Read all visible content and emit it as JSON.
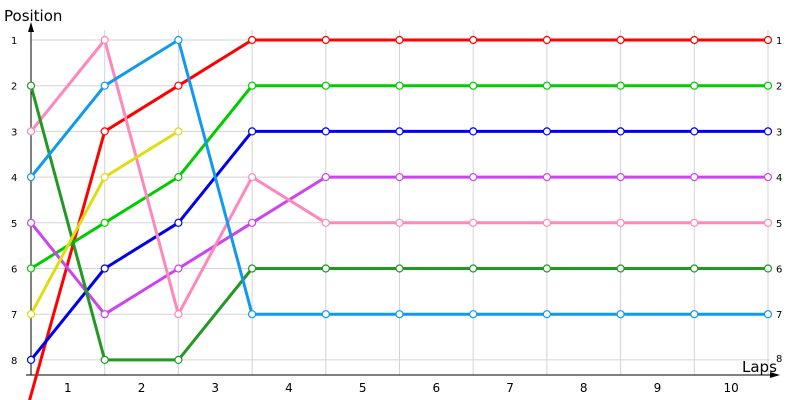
{
  "chart_data": {
    "type": "line",
    "title": "",
    "xlabel": "Laps",
    "ylabel": "Position",
    "x_tick_labels": [
      "1",
      "2",
      "3",
      "4",
      "5",
      "6",
      "7",
      "8",
      "9",
      "10"
    ],
    "y_tick_labels": [
      "1",
      "2",
      "3",
      "4",
      "5",
      "6",
      "7",
      "8"
    ],
    "right_tick_labels": [
      "1",
      "2",
      "3",
      "4",
      "5",
      "6",
      "7",
      "8"
    ],
    "y_inverted": true,
    "ylim": [
      1,
      8
    ],
    "grid": true,
    "series": [
      {
        "color": "#ff0000",
        "points": [
          [
            -0.04,
            9
          ],
          [
            1,
            3
          ],
          [
            2,
            2
          ],
          [
            3,
            1
          ],
          [
            4,
            1
          ],
          [
            5,
            1
          ],
          [
            6,
            1
          ],
          [
            7,
            1
          ],
          [
            8,
            1
          ],
          [
            9,
            1
          ],
          [
            10,
            1
          ]
        ]
      },
      {
        "color": "#00cc00",
        "points": [
          [
            0,
            6
          ],
          [
            1,
            5
          ],
          [
            2,
            4
          ],
          [
            3,
            2
          ],
          [
            4,
            2
          ],
          [
            5,
            2
          ],
          [
            6,
            2
          ],
          [
            7,
            2
          ],
          [
            8,
            2
          ],
          [
            9,
            2
          ],
          [
            10,
            2
          ]
        ]
      },
      {
        "color": "#0000ee",
        "points": [
          [
            0,
            8
          ],
          [
            1,
            6
          ],
          [
            2,
            5
          ],
          [
            3,
            3
          ],
          [
            4,
            3
          ],
          [
            5,
            3
          ],
          [
            6,
            3
          ],
          [
            7,
            3
          ],
          [
            8,
            3
          ],
          [
            9,
            3
          ],
          [
            10,
            3
          ]
        ]
      },
      {
        "color": "#cc44ee",
        "points": [
          [
            0,
            5
          ],
          [
            1,
            7
          ],
          [
            2,
            6
          ],
          [
            3,
            5
          ],
          [
            4,
            4
          ],
          [
            5,
            4
          ],
          [
            6,
            4
          ],
          [
            7,
            4
          ],
          [
            8,
            4
          ],
          [
            9,
            4
          ],
          [
            10,
            4
          ]
        ]
      },
      {
        "color": "#ff88bb",
        "points": [
          [
            0,
            3
          ],
          [
            1,
            1
          ],
          [
            2,
            7
          ],
          [
            3,
            4
          ],
          [
            4,
            5
          ],
          [
            5,
            5
          ],
          [
            6,
            5
          ],
          [
            7,
            5
          ],
          [
            8,
            5
          ],
          [
            9,
            5
          ],
          [
            10,
            5
          ]
        ]
      },
      {
        "color": "#229922",
        "points": [
          [
            0,
            2
          ],
          [
            1,
            8
          ],
          [
            2,
            8
          ],
          [
            3,
            6
          ],
          [
            4,
            6
          ],
          [
            5,
            6
          ],
          [
            6,
            6
          ],
          [
            7,
            6
          ],
          [
            8,
            6
          ],
          [
            9,
            6
          ],
          [
            10,
            6
          ]
        ]
      },
      {
        "color": "#1199ee",
        "points": [
          [
            0,
            4
          ],
          [
            1,
            2
          ],
          [
            2,
            1
          ],
          [
            3,
            7
          ],
          [
            4,
            7
          ],
          [
            5,
            7
          ],
          [
            6,
            7
          ],
          [
            7,
            7
          ],
          [
            8,
            7
          ],
          [
            9,
            7
          ],
          [
            10,
            7
          ]
        ]
      },
      {
        "color": "#dddd11",
        "points": [
          [
            0,
            7
          ],
          [
            1,
            4
          ],
          [
            2,
            3
          ]
        ]
      }
    ]
  }
}
